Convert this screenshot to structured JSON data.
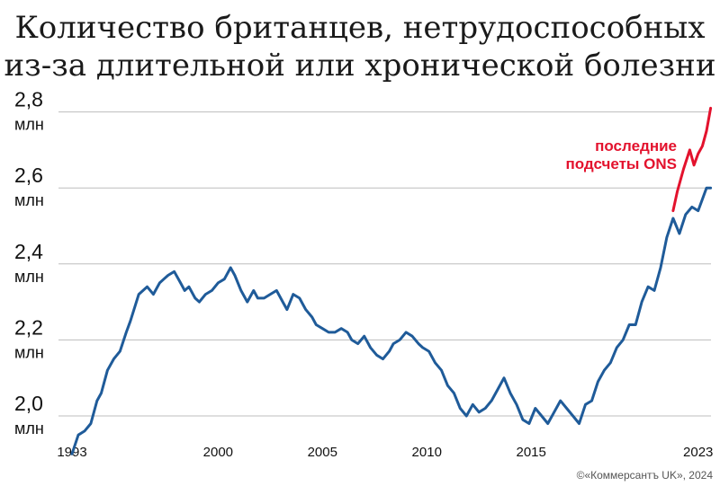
{
  "title": {
    "line1": "Количество британцев, нетрудоспособных",
    "line2": "из-за длительной или хронической болезни"
  },
  "source": "©«Коммерсантъ UK», 2024",
  "colors": {
    "series": "#1f5b99",
    "revised": "#e3122d",
    "grid": "#bdbdbd",
    "text": "#111111"
  },
  "chart_data": {
    "type": "line",
    "title": "Количество британцев, нетрудоспособных из-за длительной или хронической болезни",
    "xlabel": "",
    "ylabel": "",
    "ylim": [
      1.92,
      2.84
    ],
    "xlim": [
      1993,
      2024
    ],
    "grid": true,
    "legend": "none",
    "y_ticks": [
      {
        "value": 2.0,
        "label": "2,0",
        "unit": "млн"
      },
      {
        "value": 2.2,
        "label": "2,2",
        "unit": "млн"
      },
      {
        "value": 2.4,
        "label": "2,4",
        "unit": "млн"
      },
      {
        "value": 2.6,
        "label": "2,6",
        "unit": "млн"
      },
      {
        "value": 2.8,
        "label": "2,8",
        "unit": "млн"
      }
    ],
    "x_ticks": [
      "1993",
      "2000",
      "2005",
      "2010",
      "2015",
      "2023"
    ],
    "annotation": {
      "line1": "последние",
      "line2": "подсчеты ONS"
    },
    "series": [
      {
        "x": [
          1993.0,
          1993.3,
          1993.6,
          1993.9,
          1994.2,
          1994.4,
          1994.7,
          1995.0,
          1995.3,
          1995.6,
          1995.8,
          1996.2,
          1996.6,
          1996.9,
          1997.2,
          1997.4,
          1997.6,
          1997.9,
          1998.2,
          1998.4,
          1998.6,
          1998.9,
          1999.1,
          1999.4,
          1999.7,
          2000.0,
          2000.3,
          2000.6,
          2000.8,
          2001.1,
          2001.4,
          2001.7,
          2001.9,
          2002.2,
          2002.5,
          2002.8,
          2003.1,
          2003.3,
          2003.6,
          2003.9,
          2004.2,
          2004.5,
          2004.7,
          2005.0,
          2005.3,
          2005.6,
          2005.9,
          2006.2,
          2006.4,
          2006.7,
          2007.0,
          2007.3,
          2007.6,
          2007.9,
          2008.2,
          2008.4,
          2008.7,
          2009.0,
          2009.3,
          2009.6,
          2009.8,
          2010.1,
          2010.4,
          2010.7,
          2011.0,
          2011.3,
          2011.6,
          2011.9,
          2012.2,
          2012.5,
          2012.8,
          2013.1,
          2013.4,
          2013.7,
          2014.0,
          2014.3,
          2014.6,
          2014.9,
          2015.2,
          2015.5,
          2015.8,
          2016.1,
          2016.4,
          2016.7,
          2017.0,
          2017.3,
          2017.6,
          2017.9,
          2018.2,
          2018.5,
          2018.8,
          2019.1,
          2019.4,
          2019.7,
          2020.0,
          2020.3,
          2020.6,
          2020.9,
          2021.2,
          2021.5,
          2021.8,
          2022.1,
          2022.4,
          2022.7,
          2023.0,
          2023.2,
          2023.4,
          2023.6
        ],
        "values": [
          1.9,
          1.95,
          1.96,
          1.98,
          2.04,
          2.06,
          2.12,
          2.15,
          2.17,
          2.22,
          2.25,
          2.32,
          2.34,
          2.32,
          2.35,
          2.36,
          2.37,
          2.38,
          2.35,
          2.33,
          2.34,
          2.31,
          2.3,
          2.32,
          2.33,
          2.35,
          2.36,
          2.39,
          2.37,
          2.33,
          2.3,
          2.33,
          2.31,
          2.31,
          2.32,
          2.33,
          2.3,
          2.28,
          2.32,
          2.31,
          2.28,
          2.26,
          2.24,
          2.23,
          2.22,
          2.22,
          2.23,
          2.22,
          2.2,
          2.19,
          2.21,
          2.18,
          2.16,
          2.15,
          2.17,
          2.19,
          2.2,
          2.22,
          2.21,
          2.19,
          2.18,
          2.17,
          2.14,
          2.12,
          2.08,
          2.06,
          2.02,
          2.0,
          2.03,
          2.01,
          2.02,
          2.04,
          2.07,
          2.1,
          2.06,
          2.03,
          1.99,
          1.98,
          2.02,
          2.0,
          1.98,
          2.01,
          2.04,
          2.02,
          2.0,
          1.98,
          2.03,
          2.04,
          2.09,
          2.12,
          2.14,
          2.18,
          2.2,
          2.24,
          2.24,
          2.3,
          2.34,
          2.33,
          2.39,
          2.47,
          2.52,
          2.48,
          2.53,
          2.55,
          2.54,
          2.57,
          2.6,
          2.6
        ]
      },
      {
        "x": [
          2021.8,
          2022.0,
          2022.3,
          2022.6,
          2022.8,
          2023.0,
          2023.2,
          2023.4,
          2023.6
        ],
        "values": [
          2.54,
          2.59,
          2.65,
          2.7,
          2.66,
          2.69,
          2.71,
          2.75,
          2.81
        ]
      }
    ]
  }
}
